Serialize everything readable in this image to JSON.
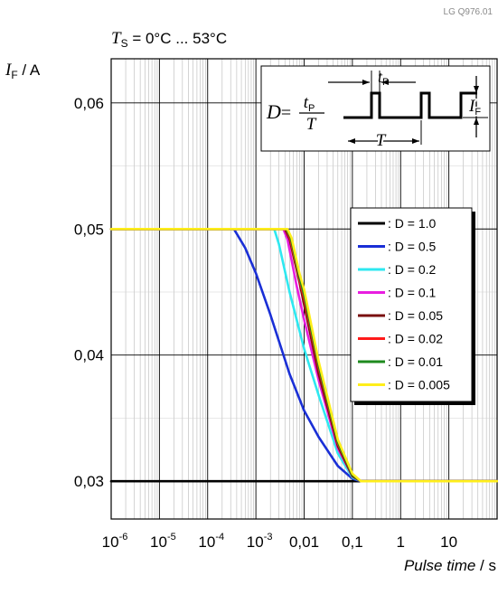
{
  "doc_code": "LG Q976.01",
  "chart_data": {
    "type": "line",
    "title": "T_S = 0°C ... 53°C",
    "title_parts": {
      "symbol": "T",
      "subscript": "S",
      "rest": " = 0°C ... 53°C"
    },
    "ylabel": "I_F / A",
    "ylabel_parts": {
      "symbol": "I",
      "subscript": "F",
      "rest": " / A"
    },
    "xlabel": "Pulse time / s",
    "xlabel_parts": {
      "italic": "Pulse time",
      "rest": " / s"
    },
    "x_scale": "log",
    "xlim": [
      1e-06,
      100
    ],
    "ylim": [
      0.027,
      0.0635
    ],
    "grid": true,
    "legend_position": "right-middle",
    "x_ticks": [
      {
        "value": 1e-06,
        "base": "10",
        "exp": "-6"
      },
      {
        "value": 1e-05,
        "base": "10",
        "exp": "-5"
      },
      {
        "value": 0.0001,
        "base": "10",
        "exp": "-4"
      },
      {
        "value": 0.001,
        "base": "10",
        "exp": "-3"
      },
      {
        "value": 0.01,
        "base": "0,01",
        "exp": ""
      },
      {
        "value": 0.1,
        "base": "0,1",
        "exp": ""
      },
      {
        "value": 1,
        "base": "1",
        "exp": ""
      },
      {
        "value": 10,
        "base": "10",
        "exp": ""
      }
    ],
    "y_ticks": [
      {
        "value": 0.03,
        "label": "0,03"
      },
      {
        "value": 0.04,
        "label": "0,04"
      },
      {
        "value": 0.05,
        "label": "0,05"
      },
      {
        "value": 0.06,
        "label": "0,06"
      }
    ],
    "series": [
      {
        "name": ": D = 1.0",
        "color": "#000000",
        "points": [
          [
            1e-06,
            0.03
          ],
          [
            100,
            0.03
          ]
        ]
      },
      {
        "name": ": D = 0.5",
        "color": "#1a2fd6",
        "points": [
          [
            1e-06,
            0.05
          ],
          [
            0.00035,
            0.05
          ],
          [
            0.0006,
            0.0485
          ],
          [
            0.001,
            0.0465
          ],
          [
            0.002,
            0.0432
          ],
          [
            0.005,
            0.0385
          ],
          [
            0.01,
            0.0356
          ],
          [
            0.02,
            0.0335
          ],
          [
            0.05,
            0.0312
          ],
          [
            0.1,
            0.0302
          ],
          [
            0.15,
            0.03
          ],
          [
            100,
            0.03
          ]
        ]
      },
      {
        "name": ": D = 0.2",
        "color": "#2ee8f0",
        "points": [
          [
            1e-06,
            0.05
          ],
          [
            0.0024,
            0.05
          ],
          [
            0.003,
            0.0488
          ],
          [
            0.005,
            0.045
          ],
          [
            0.01,
            0.0405
          ],
          [
            0.02,
            0.0368
          ],
          [
            0.05,
            0.0322
          ],
          [
            0.1,
            0.0303
          ],
          [
            0.15,
            0.03
          ],
          [
            100,
            0.03
          ]
        ]
      },
      {
        "name": ": D = 0.1",
        "color": "#e81ee0",
        "points": [
          [
            1e-06,
            0.05
          ],
          [
            0.0037,
            0.05
          ],
          [
            0.0045,
            0.0492
          ],
          [
            0.007,
            0.0455
          ],
          [
            0.01,
            0.0428
          ],
          [
            0.02,
            0.038
          ],
          [
            0.05,
            0.0326
          ],
          [
            0.1,
            0.0304
          ],
          [
            0.15,
            0.03
          ],
          [
            100,
            0.03
          ]
        ]
      },
      {
        "name": ": D = 0.05",
        "color": "#7a1010",
        "points": [
          [
            1e-06,
            0.05
          ],
          [
            0.004,
            0.05
          ],
          [
            0.005,
            0.0492
          ],
          [
            0.008,
            0.0458
          ],
          [
            0.01,
            0.044
          ],
          [
            0.02,
            0.0385
          ],
          [
            0.05,
            0.0328
          ],
          [
            0.1,
            0.0304
          ],
          [
            0.15,
            0.03
          ],
          [
            100,
            0.03
          ]
        ]
      },
      {
        "name": ": D = 0.02",
        "color": "#ff1a1a",
        "points": [
          [
            1e-06,
            0.05
          ],
          [
            0.0042,
            0.05
          ],
          [
            0.0052,
            0.0492
          ],
          [
            0.008,
            0.046
          ],
          [
            0.01,
            0.0445
          ],
          [
            0.02,
            0.039
          ],
          [
            0.05,
            0.033
          ],
          [
            0.1,
            0.0305
          ],
          [
            0.15,
            0.03
          ],
          [
            100,
            0.03
          ]
        ]
      },
      {
        "name": ": D = 0.01",
        "color": "#1e8a1e",
        "points": [
          [
            1e-06,
            0.05
          ],
          [
            0.0043,
            0.05
          ],
          [
            0.0053,
            0.0493
          ],
          [
            0.008,
            0.0462
          ],
          [
            0.01,
            0.0448
          ],
          [
            0.02,
            0.0392
          ],
          [
            0.05,
            0.0331
          ],
          [
            0.1,
            0.0305
          ],
          [
            0.15,
            0.03
          ],
          [
            100,
            0.03
          ]
        ]
      },
      {
        "name": ": D = 0.005",
        "color": "#ffee1a",
        "points": [
          [
            1e-06,
            0.05
          ],
          [
            0.0045,
            0.05
          ],
          [
            0.0055,
            0.0493
          ],
          [
            0.008,
            0.0465
          ],
          [
            0.01,
            0.0452
          ],
          [
            0.02,
            0.0395
          ],
          [
            0.05,
            0.0333
          ],
          [
            0.1,
            0.0306
          ],
          [
            0.15,
            0.03
          ],
          [
            100,
            0.03
          ]
        ]
      }
    ],
    "inset": {
      "formula_lhs": "D",
      "formula_num": "t",
      "formula_num_sub": "P",
      "formula_den": "T",
      "tp_symbol": "t",
      "tp_sub": "P",
      "period_symbol": "T",
      "amp_symbol": "I",
      "amp_sub": "F"
    }
  }
}
